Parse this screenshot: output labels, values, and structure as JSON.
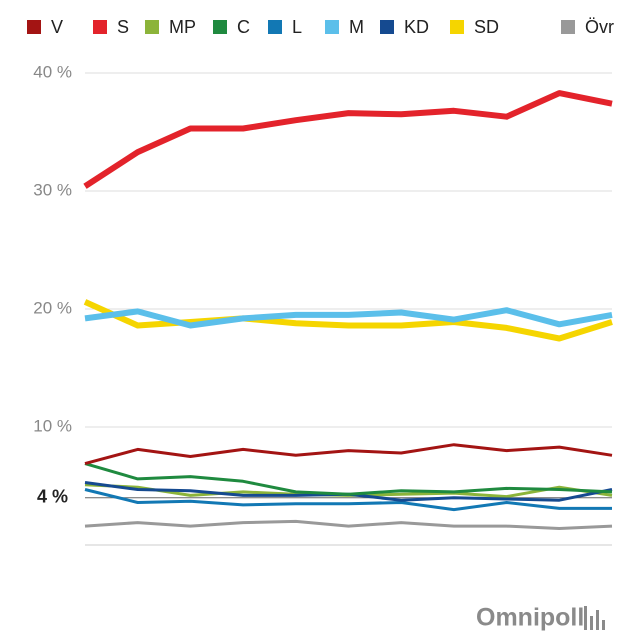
{
  "chart_data": {
    "type": "line",
    "categories": [
      null,
      null,
      null,
      null,
      null,
      null,
      null,
      null,
      null,
      null,
      null
    ],
    "series": [
      {
        "name": "V",
        "color": "#a31413",
        "values": [
          6.9,
          8.1,
          7.5,
          8.1,
          7.6,
          8.0,
          7.8,
          8.5,
          8.0,
          8.3,
          7.6
        ]
      },
      {
        "name": "S",
        "color": "#e3232b",
        "values": [
          30.4,
          33.3,
          35.3,
          35.3,
          36.0,
          36.6,
          36.5,
          36.8,
          36.3,
          38.3,
          37.4
        ]
      },
      {
        "name": "MP",
        "color": "#8cb43a",
        "values": [
          5.1,
          4.9,
          4.2,
          4.5,
          4.3,
          4.2,
          4.3,
          4.4,
          4.1,
          4.9,
          4.2
        ]
      },
      {
        "name": "C",
        "color": "#1f8a3f",
        "values": [
          6.9,
          5.6,
          5.8,
          5.4,
          4.5,
          4.3,
          4.6,
          4.5,
          4.8,
          4.7,
          4.5
        ]
      },
      {
        "name": "L",
        "color": "#1278b4",
        "values": [
          4.7,
          3.6,
          3.7,
          3.4,
          3.5,
          3.5,
          3.6,
          3.0,
          3.6,
          3.1,
          3.1
        ]
      },
      {
        "name": "M",
        "color": "#5bbfea",
        "values": [
          19.2,
          19.8,
          18.6,
          19.2,
          19.5,
          19.5,
          19.7,
          19.1,
          19.9,
          18.7,
          19.5
        ]
      },
      {
        "name": "KD",
        "color": "#154a90",
        "values": [
          5.3,
          4.7,
          4.6,
          4.2,
          4.2,
          4.3,
          3.8,
          4.0,
          3.9,
          3.8,
          4.7
        ]
      },
      {
        "name": "SD",
        "color": "#f5d500",
        "values": [
          20.6,
          18.6,
          18.9,
          19.2,
          18.8,
          18.6,
          18.6,
          18.9,
          18.4,
          17.5,
          18.9
        ]
      },
      {
        "name": "Övr",
        "color": "#999999",
        "values": [
          1.6,
          1.9,
          1.6,
          1.9,
          2.0,
          1.6,
          1.9,
          1.6,
          1.6,
          1.4,
          1.6
        ]
      }
    ],
    "ylim": [
      0,
      40
    ],
    "yticks": [
      {
        "value": 10,
        "label": "10 %"
      },
      {
        "value": 20,
        "label": "20 %"
      },
      {
        "value": 30,
        "label": "30 %"
      },
      {
        "value": 40,
        "label": "40 %"
      }
    ],
    "threshold": {
      "value": 4,
      "label": "4 %"
    },
    "grid": true,
    "legend": "top",
    "logo": "Omnipoll"
  }
}
